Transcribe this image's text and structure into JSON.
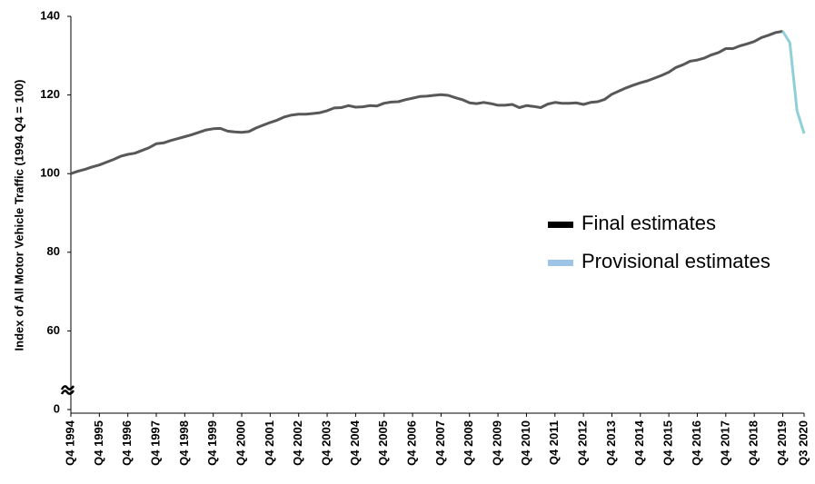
{
  "chart_data": {
    "type": "line",
    "y_label": "Index of All Motor Vehicle Traffic (1994 Q4 = 100)",
    "categories": [
      "Q4 1994",
      null,
      null,
      null,
      "Q4 1995",
      null,
      null,
      null,
      "Q4 1996",
      null,
      null,
      null,
      "Q4 1997",
      null,
      null,
      null,
      "Q4 1998",
      null,
      null,
      null,
      "Q4 1999",
      null,
      null,
      null,
      "Q4 2000",
      null,
      null,
      null,
      "Q4 2001",
      null,
      null,
      null,
      "Q4 2002",
      null,
      null,
      null,
      "Q4 2003",
      null,
      null,
      null,
      "Q4 2004",
      null,
      null,
      null,
      "Q4 2005",
      null,
      null,
      null,
      "Q4 2006",
      null,
      null,
      null,
      "Q4 2007",
      null,
      null,
      null,
      "Q4 2008",
      null,
      null,
      null,
      "Q4 2009",
      null,
      null,
      null,
      "Q4 2010",
      null,
      null,
      null,
      "Q4 2011",
      null,
      null,
      null,
      "Q4 2012",
      null,
      null,
      null,
      "Q4 2013",
      null,
      null,
      null,
      "Q4 2014",
      null,
      null,
      null,
      "Q4 2015",
      null,
      null,
      null,
      "Q4 2016",
      null,
      null,
      null,
      "Q4 2017",
      null,
      null,
      null,
      "Q4 2018",
      null,
      null,
      null,
      "Q4 2019",
      null,
      null,
      "Q3 2020"
    ],
    "series": [
      {
        "name": "Final estimates",
        "color": "#58585a",
        "values": [
          100,
          100.6,
          101.1,
          101.7,
          102.2,
          102.9,
          103.6,
          104.4,
          104.9,
          105.2,
          105.9,
          106.6,
          107.6,
          107.8,
          108.4,
          108.9,
          109.4,
          109.9,
          110.5,
          111.1,
          111.4,
          111.5,
          110.8,
          110.6,
          110.5,
          110.7,
          111.6,
          112.3,
          113.0,
          113.6,
          114.4,
          114.9,
          115.1,
          115.1,
          115.3,
          115.5,
          116.0,
          116.7,
          116.8,
          117.3,
          116.9,
          117.0,
          117.3,
          117.2,
          117.9,
          118.2,
          118.3,
          118.8,
          119.2,
          119.6,
          119.7,
          119.9,
          120.1,
          119.9,
          119.3,
          118.8,
          118.0,
          117.8,
          118.1,
          117.8,
          117.4,
          117.4,
          117.6,
          116.8,
          117.3,
          117.1,
          116.8,
          117.7,
          118.1,
          117.9,
          117.9,
          118.0,
          117.6,
          118.1,
          118.3,
          118.9,
          120.2,
          121.0,
          121.8,
          122.5,
          123.1,
          123.6,
          124.3,
          125.0,
          125.8,
          127.0,
          127.7,
          128.6,
          128.9,
          129.4,
          130.2,
          130.8,
          131.8,
          131.8,
          132.5,
          133.0,
          133.6,
          134.6,
          135.2,
          135.9,
          136.2,
          null,
          null,
          null
        ]
      },
      {
        "name": "Provisional estimates",
        "color": "#8fd0d8",
        "values": [
          null,
          null,
          null,
          null,
          null,
          null,
          null,
          null,
          null,
          null,
          null,
          null,
          null,
          null,
          null,
          null,
          null,
          null,
          null,
          null,
          null,
          null,
          null,
          null,
          null,
          null,
          null,
          null,
          null,
          null,
          null,
          null,
          null,
          null,
          null,
          null,
          null,
          null,
          null,
          null,
          null,
          null,
          null,
          null,
          null,
          null,
          null,
          null,
          null,
          null,
          null,
          null,
          null,
          null,
          null,
          null,
          null,
          null,
          null,
          null,
          null,
          null,
          null,
          null,
          null,
          null,
          null,
          null,
          null,
          null,
          null,
          null,
          null,
          null,
          null,
          null,
          null,
          null,
          null,
          null,
          null,
          null,
          null,
          null,
          null,
          null,
          null,
          null,
          null,
          null,
          null,
          null,
          null,
          null,
          null,
          null,
          null,
          null,
          null,
          null,
          136.2,
          133.3,
          116.0,
          110.2
        ]
      }
    ],
    "ylim": [
      0,
      140
    ],
    "yticks": [
      0,
      60,
      80,
      100,
      120,
      140
    ],
    "legend": "right"
  }
}
